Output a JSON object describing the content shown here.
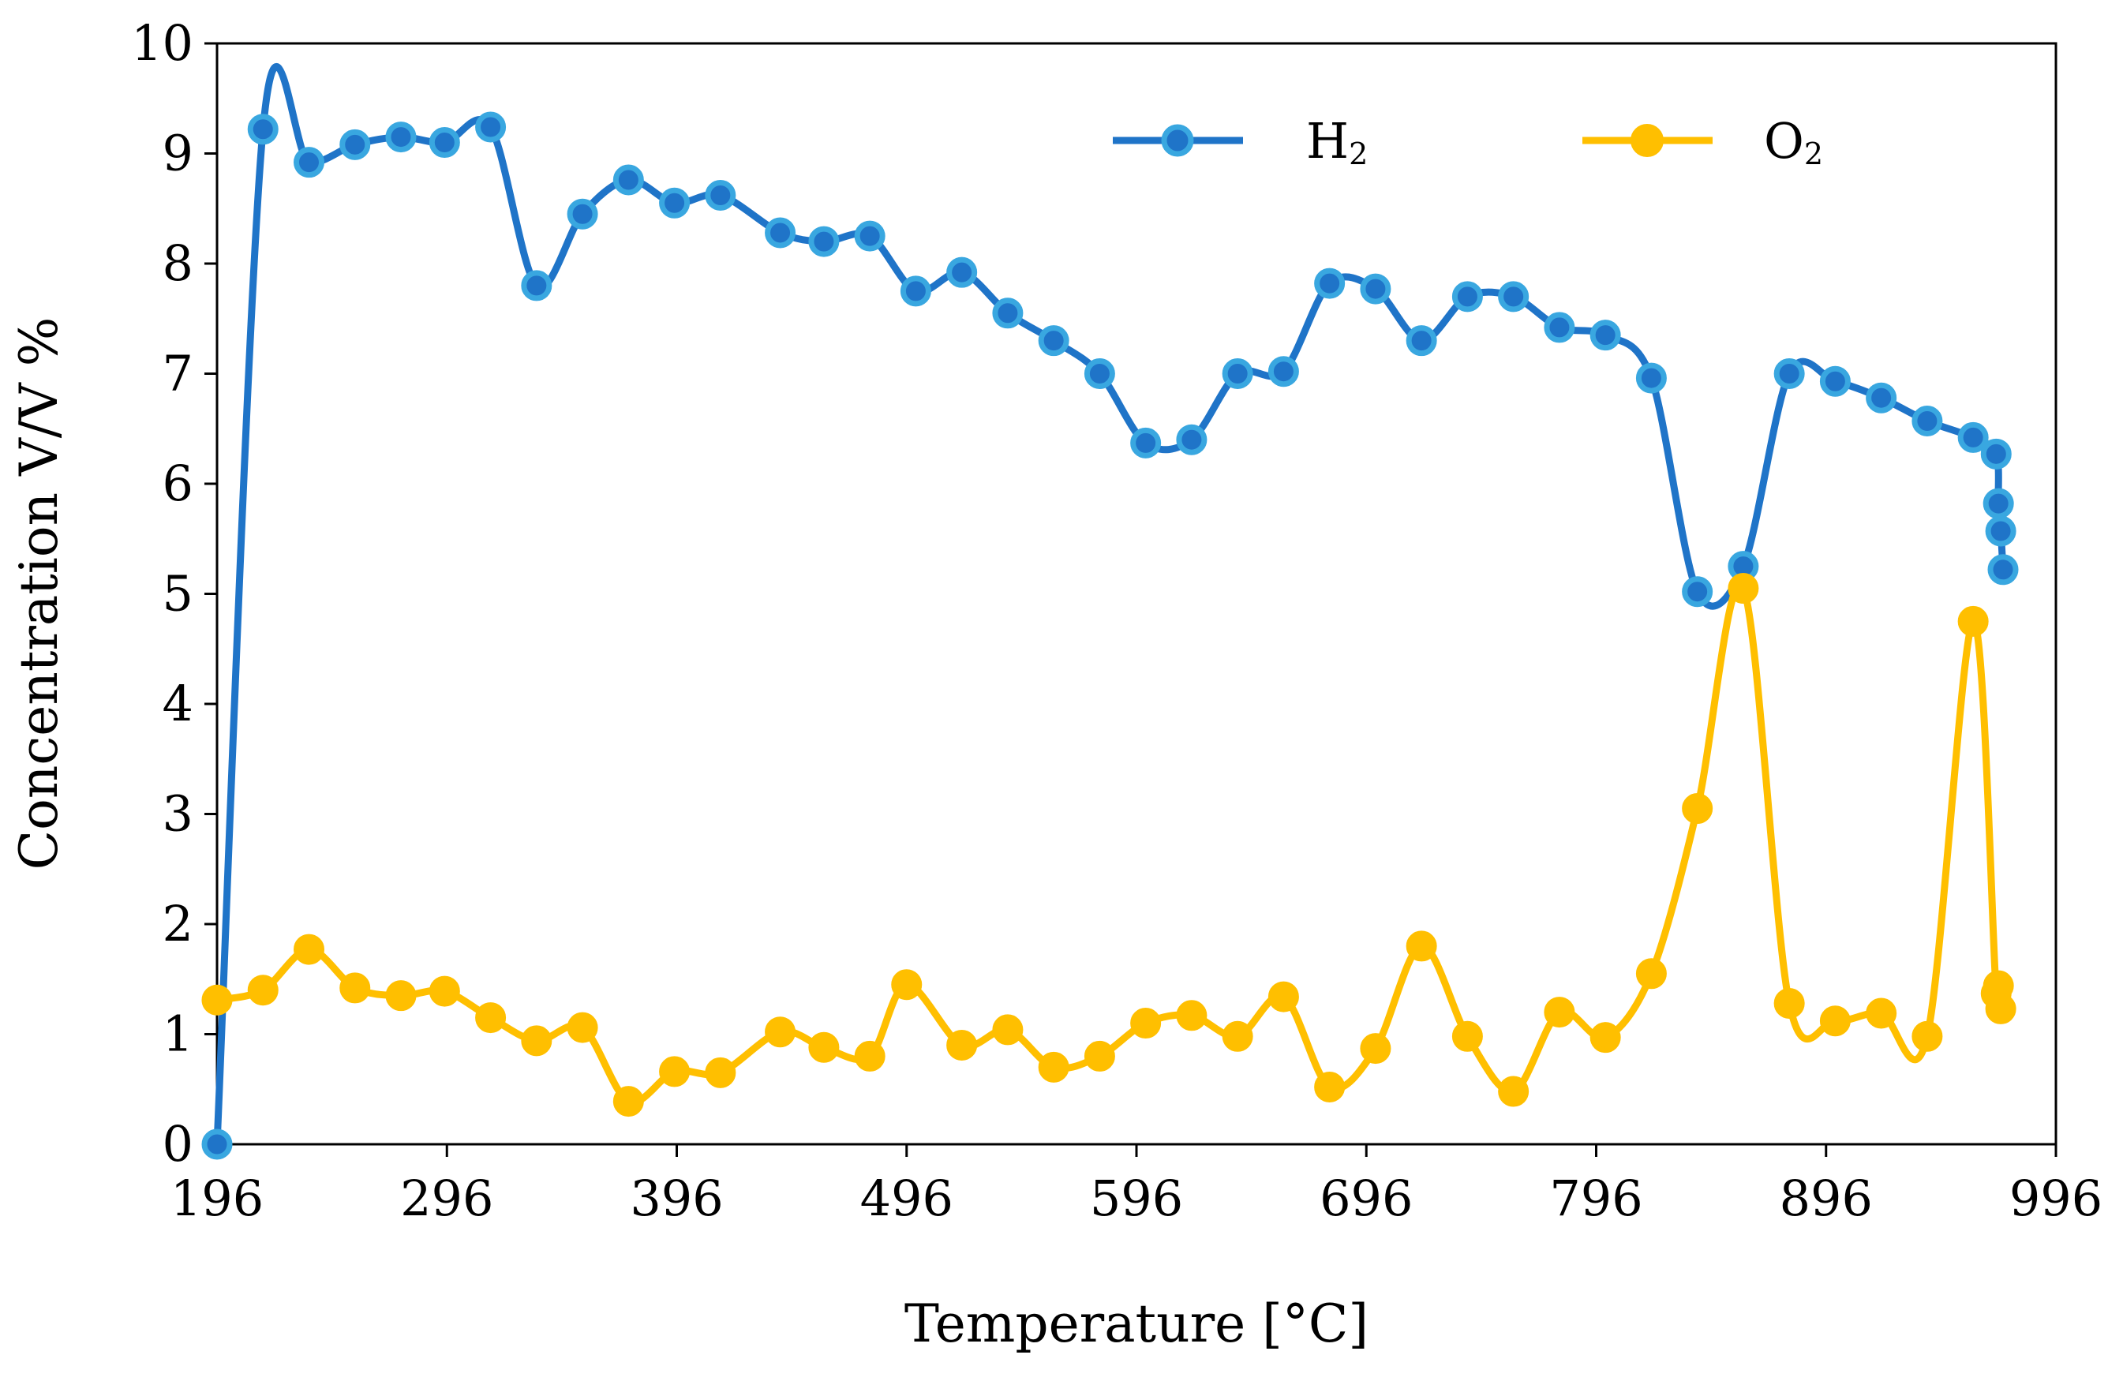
{
  "chart_data": {
    "type": "line",
    "title": "",
    "xlabel": "Temperature [°C]",
    "ylabel": "Concentration V/V %",
    "xlim": [
      196,
      996
    ],
    "ylim": [
      0,
      10
    ],
    "x_ticks": [
      196,
      296,
      396,
      496,
      596,
      696,
      796,
      896,
      996
    ],
    "y_ticks": [
      0,
      1,
      2,
      3,
      4,
      5,
      6,
      7,
      8,
      9,
      10
    ],
    "legend_position": "top-right",
    "legend": [
      {
        "base": "H",
        "sub": "2"
      },
      {
        "base": "O",
        "sub": "2"
      }
    ],
    "series": [
      {
        "name": "H2",
        "color": "#1f74c8",
        "marker_fill": "#1f74c8",
        "marker_edge": "#39a7e0",
        "x": [
          196,
          216,
          236,
          256,
          276,
          295,
          315,
          335,
          355,
          375,
          395,
          415,
          441,
          460,
          480,
          500,
          520,
          540,
          560,
          580,
          600,
          620,
          640,
          660,
          680,
          700,
          720,
          740,
          760,
          780,
          800,
          820,
          840,
          860,
          880,
          900,
          920,
          940,
          960,
          970,
          971,
          972,
          973
        ],
        "values": [
          0.0,
          9.22,
          8.92,
          9.08,
          9.15,
          9.1,
          9.24,
          7.8,
          8.45,
          8.76,
          8.55,
          8.62,
          8.28,
          8.2,
          8.25,
          7.75,
          7.92,
          7.55,
          7.3,
          7.0,
          6.37,
          6.4,
          7.0,
          7.02,
          7.82,
          7.77,
          7.3,
          7.7,
          7.7,
          7.42,
          7.35,
          6.96,
          5.02,
          5.25,
          7.0,
          6.93,
          6.78,
          6.57,
          6.42,
          6.27,
          5.82,
          5.57,
          5.22
        ]
      },
      {
        "name": "O2",
        "color": "#ffbf00",
        "marker_fill": "#ffbf00",
        "marker_edge": "#ffbf00",
        "x": [
          196,
          216,
          236,
          256,
          276,
          295,
          315,
          335,
          355,
          375,
          395,
          415,
          441,
          460,
          480,
          496,
          520,
          540,
          560,
          580,
          600,
          620,
          640,
          660,
          680,
          700,
          720,
          740,
          760,
          780,
          800,
          820,
          840,
          860,
          880,
          900,
          920,
          940,
          960,
          970,
          971,
          972
        ],
        "values": [
          1.31,
          1.4,
          1.77,
          1.42,
          1.35,
          1.39,
          1.15,
          0.94,
          1.06,
          0.39,
          0.66,
          0.65,
          1.02,
          0.88,
          0.8,
          1.45,
          0.9,
          1.04,
          0.7,
          0.8,
          1.1,
          1.17,
          0.98,
          1.34,
          0.52,
          0.87,
          1.8,
          0.98,
          0.48,
          1.2,
          0.97,
          1.55,
          3.05,
          5.05,
          1.28,
          1.12,
          1.19,
          0.98,
          4.75,
          1.37,
          1.44,
          1.23
        ]
      }
    ]
  }
}
